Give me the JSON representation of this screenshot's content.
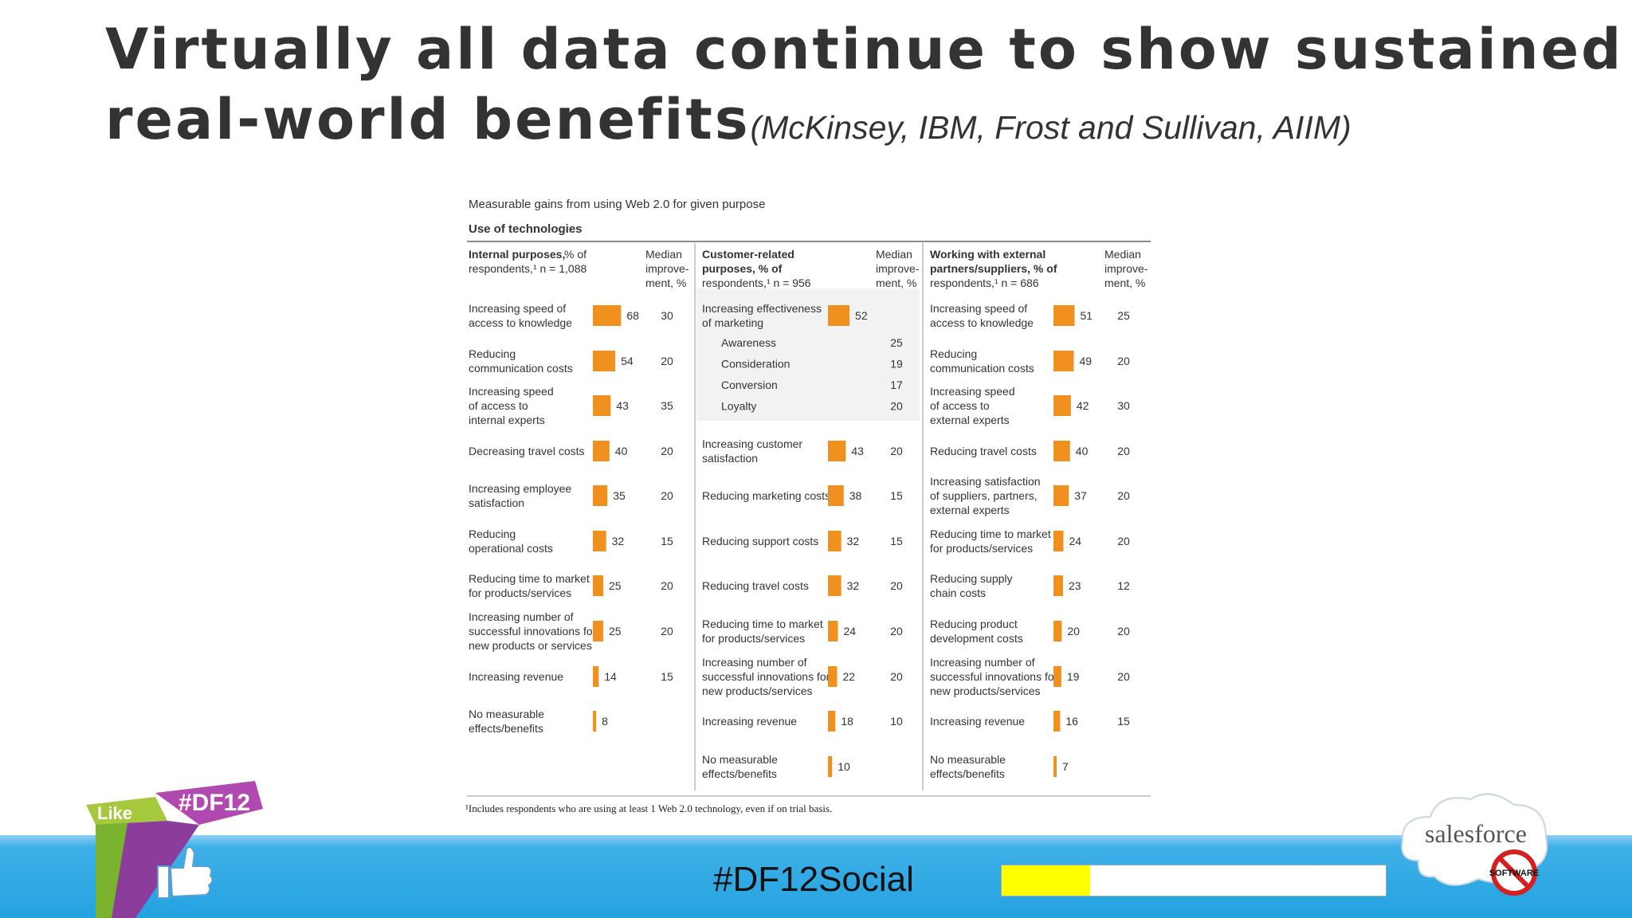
{
  "slide": {
    "title_line1": "Virtually all data continue to show sustained",
    "title_line2": "real-world benefits",
    "title_source": "(McKinsey, IBM, Frost and Sullivan, AIIM)",
    "hashtag": "#DF12Social",
    "progress_fraction": 0.23,
    "colors": {
      "bar": "#f0901e",
      "footer": "#23a2e0",
      "title": "#333333",
      "progress": "#ffff00"
    }
  },
  "logos": {
    "left": {
      "badge": "#DF12",
      "like": "Like",
      "icon": "thumbs-up-icon"
    },
    "right": {
      "brand": "salesforce",
      "stamp": "SOFTWARE",
      "icon": "no-software-icon"
    }
  },
  "chart_data": {
    "type": "bar",
    "title": "Measurable gains from using Web 2.0 for given purpose",
    "subtitle": "Use of technologies",
    "footnote": "¹Includes respondents who are using at least 1 Web 2.0 technology, even if on trial basis.",
    "panels": [
      {
        "header": [
          "Internal purposes, % of",
          "respondents,¹ n = 1,088"
        ],
        "median_header": [
          "Median",
          "improve-",
          "ment, %"
        ],
        "rows": [
          {
            "label": [
              "Increasing speed of",
              "access to knowledge"
            ],
            "value": 68,
            "median": "30"
          },
          {
            "label": [
              "Reducing",
              "communication costs"
            ],
            "value": 54,
            "median": "20"
          },
          {
            "label": [
              "Increasing speed",
              "of access to",
              "internal experts"
            ],
            "value": 43,
            "median": "35"
          },
          {
            "label": [
              "Decreasing travel costs"
            ],
            "value": 40,
            "median": "20"
          },
          {
            "label": [
              "Increasing employee",
              "satisfaction"
            ],
            "value": 35,
            "median": "20"
          },
          {
            "label": [
              "Reducing",
              "operational costs"
            ],
            "value": 32,
            "median": "15"
          },
          {
            "label": [
              "Reducing time to market",
              "for products/services"
            ],
            "value": 25,
            "median": "20"
          },
          {
            "label": [
              "Increasing number of",
              "successful innovations for",
              "new products or services"
            ],
            "value": 25,
            "median": "20"
          },
          {
            "label": [
              "Increasing revenue"
            ],
            "value": 14,
            "median": "15"
          },
          {
            "label": [
              "No measurable",
              "effects/benefits"
            ],
            "value": 8,
            "median": ""
          }
        ]
      },
      {
        "header": [
          "Customer-related",
          "purposes, % of",
          "respondents,¹ n = 956"
        ],
        "median_header": [
          "Median",
          "improve-",
          "ment, %"
        ],
        "rows": [
          {
            "label": [
              "Increasing effectiveness",
              "of marketing"
            ],
            "value": 52,
            "median": "",
            "sub": [
              {
                "label": "Awareness",
                "median": "25"
              },
              {
                "label": "Consideration",
                "median": "19"
              },
              {
                "label": "Conversion",
                "median": "17"
              },
              {
                "label": "Loyalty",
                "median": "20"
              }
            ]
          },
          {
            "label": [
              "Increasing customer",
              "satisfaction"
            ],
            "value": 43,
            "median": "20"
          },
          {
            "label": [
              "Reducing marketing costs"
            ],
            "value": 38,
            "median": "15"
          },
          {
            "label": [
              "Reducing support costs"
            ],
            "value": 32,
            "median": "15"
          },
          {
            "label": [
              "Reducing travel costs"
            ],
            "value": 32,
            "median": "20"
          },
          {
            "label": [
              "Reducing time to market",
              "for products/services"
            ],
            "value": 24,
            "median": "20"
          },
          {
            "label": [
              "Increasing number of",
              "successful innovations for",
              "new products/services"
            ],
            "value": 22,
            "median": "20"
          },
          {
            "label": [
              "Increasing revenue"
            ],
            "value": 18,
            "median": "10"
          },
          {
            "label": [
              "No measurable",
              "effects/benefits"
            ],
            "value": 10,
            "median": ""
          }
        ]
      },
      {
        "header": [
          "Working with external",
          "partners/suppliers, % of",
          "respondents,¹ n = 686"
        ],
        "median_header": [
          "Median",
          "improve-",
          "ment, %"
        ],
        "rows": [
          {
            "label": [
              "Increasing speed of",
              "access to knowledge"
            ],
            "value": 51,
            "median": "25"
          },
          {
            "label": [
              "Reducing",
              "communication costs"
            ],
            "value": 49,
            "median": "20"
          },
          {
            "label": [
              "Increasing speed",
              "of access to",
              "external experts"
            ],
            "value": 42,
            "median": "30"
          },
          {
            "label": [
              "Reducing travel costs"
            ],
            "value": 40,
            "median": "20"
          },
          {
            "label": [
              "Increasing satisfaction",
              "of suppliers, partners,",
              "external experts"
            ],
            "value": 37,
            "median": "20"
          },
          {
            "label": [
              "Reducing time to market",
              "for products/services"
            ],
            "value": 24,
            "median": "20"
          },
          {
            "label": [
              "Reducing supply",
              "chain costs"
            ],
            "value": 23,
            "median": "12"
          },
          {
            "label": [
              "Reducing product",
              "development costs"
            ],
            "value": 20,
            "median": "20"
          },
          {
            "label": [
              "Increasing number of",
              "successful innovations for",
              "new products/services"
            ],
            "value": 19,
            "median": "20"
          },
          {
            "label": [
              "Increasing revenue"
            ],
            "value": 16,
            "median": "15"
          },
          {
            "label": [
              "No measurable",
              "effects/benefits"
            ],
            "value": 7,
            "median": ""
          }
        ]
      }
    ]
  }
}
